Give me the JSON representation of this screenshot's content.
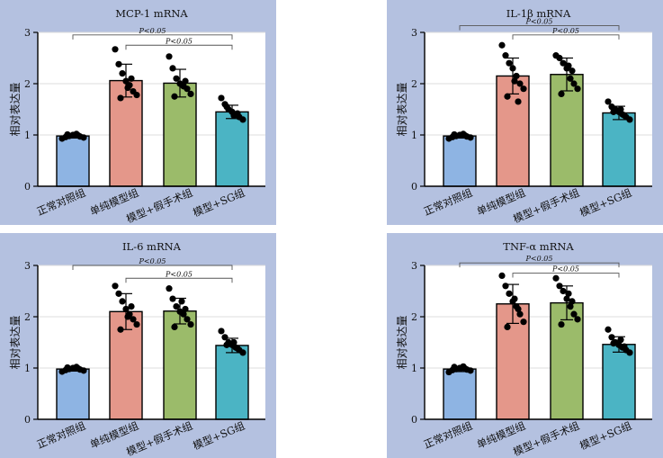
{
  "y_axis_label": "相对表达量",
  "categories": [
    "正常对照组",
    "单纯模型组",
    "模型+假手术组",
    "模型+SG组"
  ],
  "bar_colors": [
    "#8eb4e3",
    "#e4978a",
    "#9bbb6a",
    "#4bb4c4"
  ],
  "chart_data": [
    {
      "type": "bar",
      "title": "MCP-1 mRNA",
      "ylabel": "相对表达量",
      "ylim": [
        0,
        3
      ],
      "yticks": [
        "0",
        "1",
        "2",
        "3"
      ],
      "categories": [
        "正常对照组",
        "单纯模型组",
        "模型+假手术组",
        "模型+SG组"
      ],
      "values": [
        0.98,
        2.06,
        2.01,
        1.45
      ],
      "errors": [
        0.04,
        0.32,
        0.27,
        0.13
      ],
      "points": [
        [
          0.93,
          0.96,
          0.98,
          1.0,
          1.02,
          0.97,
          0.95,
          1.01,
          0.99,
          1.0
        ],
        [
          2.67,
          2.38,
          2.2,
          2.05,
          1.97,
          1.85,
          1.78,
          1.72,
          2.1,
          1.92
        ],
        [
          2.53,
          2.3,
          2.1,
          2.0,
          1.95,
          1.9,
          1.8,
          1.75,
          2.05,
          1.98
        ],
        [
          1.72,
          1.6,
          1.5,
          1.45,
          1.4,
          1.35,
          1.3,
          1.55,
          1.42,
          1.38
        ]
      ],
      "annotations": [
        {
          "text": "P<0.05",
          "from": 0,
          "to": 3,
          "y": 2.95
        },
        {
          "text": "P<0.05",
          "from": 1,
          "to": 3,
          "y": 2.75
        }
      ]
    },
    {
      "type": "bar",
      "title": "IL-1β mRNA",
      "ylabel": "相对表达量",
      "ylim": [
        0,
        3
      ],
      "yticks": [
        "0",
        "1",
        "2",
        "3"
      ],
      "categories": [
        "正常对照组",
        "单纯模型组",
        "模型+假手术组",
        "模型+SG组"
      ],
      "values": [
        0.98,
        2.15,
        2.18,
        1.43
      ],
      "errors": [
        0.04,
        0.35,
        0.32,
        0.13
      ],
      "points": [
        [
          0.93,
          0.96,
          0.98,
          1.0,
          1.02,
          0.97,
          0.95,
          1.01,
          0.99,
          1.0
        ],
        [
          2.75,
          2.55,
          2.4,
          2.3,
          2.15,
          2.0,
          1.9,
          1.75,
          1.65,
          2.05
        ],
        [
          2.55,
          2.5,
          2.4,
          2.3,
          2.1,
          2.0,
          1.9,
          1.8,
          2.25,
          2.35
        ],
        [
          1.65,
          1.55,
          1.5,
          1.45,
          1.4,
          1.35,
          1.3,
          1.45,
          1.38,
          1.5
        ]
      ],
      "annotations": [
        {
          "text": "P<0.05",
          "from": 0,
          "to": 3,
          "y": 3.13
        },
        {
          "text": "P<0.05",
          "from": 1,
          "to": 3,
          "y": 2.95
        }
      ]
    },
    {
      "type": "bar",
      "title": "IL-6 mRNA",
      "ylabel": "相对表达量",
      "ylim": [
        0,
        3
      ],
      "yticks": [
        "0",
        "1",
        "2",
        "3"
      ],
      "categories": [
        "正常对照组",
        "单纯模型组",
        "模型+假手术组",
        "模型+SG组"
      ],
      "values": [
        0.98,
        2.1,
        2.11,
        1.44
      ],
      "errors": [
        0.04,
        0.35,
        0.25,
        0.14
      ],
      "points": [
        [
          0.93,
          0.96,
          0.98,
          1.0,
          1.02,
          0.97,
          0.95,
          1.01,
          0.99,
          1.0
        ],
        [
          2.6,
          2.45,
          2.3,
          2.15,
          2.05,
          1.95,
          1.85,
          1.75,
          2.2,
          2.0
        ],
        [
          2.55,
          2.35,
          2.2,
          2.1,
          2.05,
          1.95,
          1.85,
          1.8,
          2.15,
          2.3
        ],
        [
          1.72,
          1.6,
          1.5,
          1.45,
          1.4,
          1.35,
          1.3,
          1.45,
          1.38,
          1.5
        ]
      ],
      "annotations": [
        {
          "text": "P<0.05",
          "from": 0,
          "to": 3,
          "y": 3.0
        },
        {
          "text": "P<0.05",
          "from": 1,
          "to": 3,
          "y": 2.75
        }
      ]
    },
    {
      "type": "bar",
      "title": "TNF-α mRNA",
      "ylabel": "相对表达量",
      "ylim": [
        0,
        3
      ],
      "yticks": [
        "0",
        "1",
        "2",
        "3"
      ],
      "categories": [
        "正常对照组",
        "单纯模型组",
        "模型+假手术组",
        "模型+SG组"
      ],
      "values": [
        0.98,
        2.25,
        2.27,
        1.46
      ],
      "errors": [
        0.05,
        0.38,
        0.33,
        0.15
      ],
      "points": [
        [
          0.92,
          0.96,
          0.98,
          1.0,
          1.03,
          0.97,
          0.95,
          1.02,
          0.99,
          1.0
        ],
        [
          2.8,
          2.6,
          2.45,
          2.3,
          2.2,
          2.05,
          1.9,
          1.8,
          2.15,
          2.35
        ],
        [
          2.75,
          2.6,
          2.5,
          2.35,
          2.2,
          2.05,
          1.95,
          1.85,
          2.3,
          2.45
        ],
        [
          1.75,
          1.6,
          1.5,
          1.45,
          1.4,
          1.35,
          1.3,
          1.48,
          1.42,
          1.55
        ]
      ],
      "annotations": [
        {
          "text": "P<0.05",
          "from": 0,
          "to": 3,
          "y": 3.05
        },
        {
          "text": "P<0.05",
          "from": 1,
          "to": 3,
          "y": 2.85
        }
      ]
    }
  ]
}
